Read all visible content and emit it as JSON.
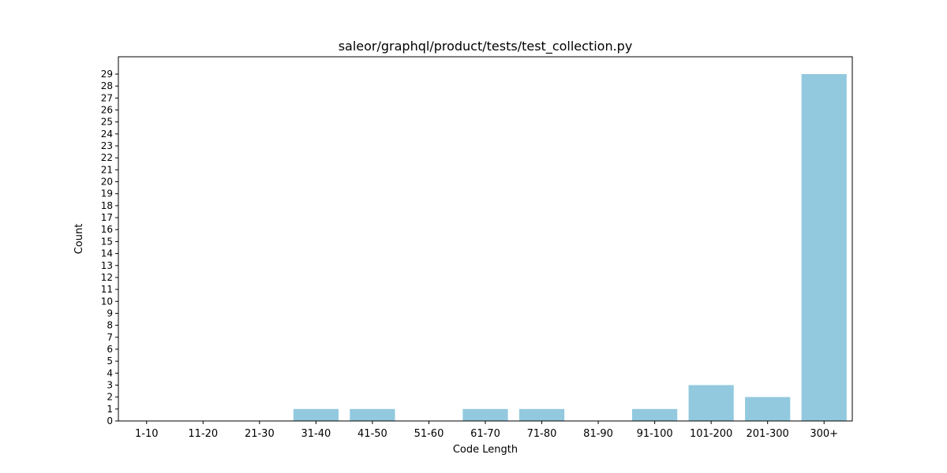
{
  "chart_data": {
    "type": "bar",
    "title": "saleor/graphql/product/tests/test_collection.py",
    "xlabel": "Code Length",
    "ylabel": "Count",
    "categories": [
      "1-10",
      "11-20",
      "21-30",
      "31-40",
      "41-50",
      "51-60",
      "61-70",
      "71-80",
      "81-90",
      "91-100",
      "101-200",
      "201-300",
      "300+"
    ],
    "values": [
      0,
      0,
      0,
      1,
      1,
      0,
      1,
      1,
      0,
      1,
      3,
      2,
      29
    ],
    "ylim": [
      0,
      30.45
    ],
    "y_ticks": [
      0,
      1,
      2,
      3,
      4,
      5,
      6,
      7,
      8,
      9,
      10,
      11,
      12,
      13,
      14,
      15,
      16,
      17,
      18,
      19,
      20,
      21,
      22,
      23,
      24,
      25,
      26,
      27,
      28,
      29
    ],
    "bar_color": "#92c9df",
    "grid": false,
    "legend": "none"
  }
}
